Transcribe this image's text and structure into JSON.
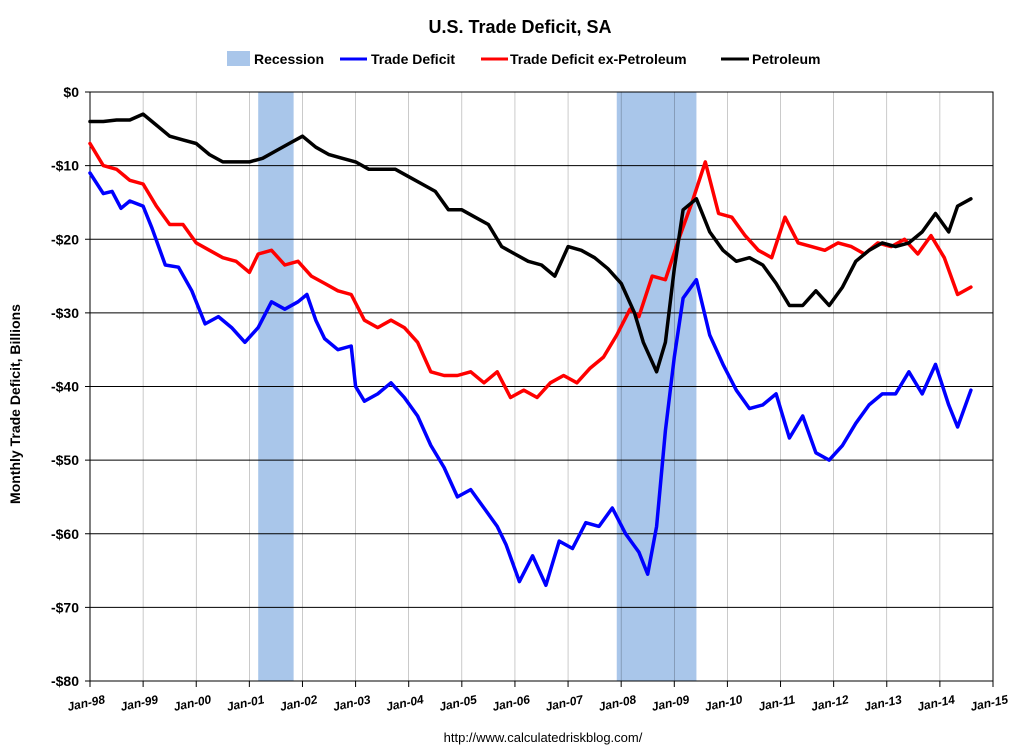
{
  "chart_data": {
    "type": "line",
    "title": "U.S. Trade Deficit, SA",
    "xlabel": "",
    "ylabel": "Monthly Trade Deficit, Billions",
    "footer": "http://www.calculatedriskblog.com/",
    "ylim": [
      -80,
      0
    ],
    "yticks": [
      0,
      -10,
      -20,
      -30,
      -40,
      -50,
      -60,
      -70,
      -80
    ],
    "ytick_labels": [
      "$0",
      "-$10",
      "-$20",
      "-$30",
      "-$40",
      "-$50",
      "-$60",
      "-$70",
      "-$80"
    ],
    "xlim": [
      "1998-01",
      "2015-01"
    ],
    "xtick_labels": [
      "Jan-98",
      "Jan-99",
      "Jan-00",
      "Jan-01",
      "Jan-02",
      "Jan-03",
      "Jan-04",
      "Jan-05",
      "Jan-06",
      "Jan-07",
      "Jan-08",
      "Jan-09",
      "Jan-10",
      "Jan-11",
      "Jan-12",
      "Jan-13",
      "Jan-14",
      "Jan-15"
    ],
    "grid": true,
    "legend_position": "top-center",
    "legend": [
      "Recession",
      "Trade Deficit",
      "Trade Deficit ex-Petroleum",
      "Petroleum"
    ],
    "recessions": [
      {
        "start": "2001-03",
        "end": "2001-11"
      },
      {
        "start": "2007-12",
        "end": "2009-06"
      }
    ],
    "recession_color": "#a9c6ea",
    "series": [
      {
        "name": "Trade Deficit",
        "color": "#0000ff",
        "points": [
          [
            "1998-01",
            -11
          ],
          [
            "1998-04",
            -13.8
          ],
          [
            "1998-06",
            -13.5
          ],
          [
            "1998-08",
            -15.8
          ],
          [
            "1998-10",
            -14.8
          ],
          [
            "1999-01",
            -15.5
          ],
          [
            "1999-03",
            -18.5
          ],
          [
            "1999-06",
            -23.5
          ],
          [
            "1999-09",
            -23.8
          ],
          [
            "1999-12",
            -27
          ],
          [
            "2000-03",
            -31.5
          ],
          [
            "2000-06",
            -30.5
          ],
          [
            "2000-09",
            -32
          ],
          [
            "2000-12",
            -34
          ],
          [
            "2001-03",
            -32
          ],
          [
            "2001-06",
            -28.5
          ],
          [
            "2001-09",
            -29.5
          ],
          [
            "2001-12",
            -28.5
          ],
          [
            "2002-02",
            -27.5
          ],
          [
            "2002-04",
            -31
          ],
          [
            "2002-06",
            -33.5
          ],
          [
            "2002-09",
            -35
          ],
          [
            "2002-12",
            -34.5
          ],
          [
            "2003-01",
            -40
          ],
          [
            "2003-03",
            -42
          ],
          [
            "2003-06",
            -41
          ],
          [
            "2003-09",
            -39.5
          ],
          [
            "2003-12",
            -41.5
          ],
          [
            "2004-03",
            -44
          ],
          [
            "2004-06",
            -48
          ],
          [
            "2004-09",
            -51
          ],
          [
            "2004-12",
            -55
          ],
          [
            "2005-03",
            -54
          ],
          [
            "2005-06",
            -56.5
          ],
          [
            "2005-09",
            -59
          ],
          [
            "2005-11",
            -61.5
          ],
          [
            "2006-02",
            -66.5
          ],
          [
            "2006-05",
            -63
          ],
          [
            "2006-08",
            -67
          ],
          [
            "2006-11",
            -61
          ],
          [
            "2007-02",
            -62
          ],
          [
            "2007-05",
            -58.5
          ],
          [
            "2007-08",
            -59
          ],
          [
            "2007-11",
            -56.5
          ],
          [
            "2008-02",
            -60
          ],
          [
            "2008-05",
            -62.5
          ],
          [
            "2008-07",
            -65.5
          ],
          [
            "2008-09",
            -59
          ],
          [
            "2008-11",
            -46
          ],
          [
            "2009-01",
            -36
          ],
          [
            "2009-03",
            -28
          ],
          [
            "2009-06",
            -25.5
          ],
          [
            "2009-09",
            -33
          ],
          [
            "2009-12",
            -37
          ],
          [
            "2010-03",
            -40.5
          ],
          [
            "2010-06",
            -43
          ],
          [
            "2010-09",
            -42.5
          ],
          [
            "2010-12",
            -41
          ],
          [
            "2011-03",
            -47
          ],
          [
            "2011-06",
            -44
          ],
          [
            "2011-09",
            -49
          ],
          [
            "2011-12",
            -50
          ],
          [
            "2012-03",
            -48
          ],
          [
            "2012-06",
            -45
          ],
          [
            "2012-09",
            -42.5
          ],
          [
            "2012-12",
            -41
          ],
          [
            "2013-03",
            -41
          ],
          [
            "2013-06",
            -38
          ],
          [
            "2013-09",
            -41
          ],
          [
            "2013-12",
            -37
          ],
          [
            "2014-03",
            -42.5
          ],
          [
            "2014-05",
            -45.5
          ],
          [
            "2014-08",
            -40.5
          ]
        ]
      },
      {
        "name": "Trade Deficit ex-Petroleum",
        "color": "#ff0000",
        "points": [
          [
            "1998-01",
            -7
          ],
          [
            "1998-04",
            -10
          ],
          [
            "1998-07",
            -10.5
          ],
          [
            "1998-10",
            -12
          ],
          [
            "1999-01",
            -12.5
          ],
          [
            "1999-04",
            -15.5
          ],
          [
            "1999-07",
            -18
          ],
          [
            "1999-10",
            -18
          ],
          [
            "2000-01",
            -20.5
          ],
          [
            "2000-04",
            -21.5
          ],
          [
            "2000-07",
            -22.5
          ],
          [
            "2000-10",
            -23
          ],
          [
            "2001-01",
            -24.5
          ],
          [
            "2001-03",
            -22
          ],
          [
            "2001-06",
            -21.5
          ],
          [
            "2001-09",
            -23.5
          ],
          [
            "2001-12",
            -23
          ],
          [
            "2002-03",
            -25
          ],
          [
            "2002-06",
            -26
          ],
          [
            "2002-09",
            -27
          ],
          [
            "2002-12",
            -27.5
          ],
          [
            "2003-03",
            -31
          ],
          [
            "2003-06",
            -32
          ],
          [
            "2003-09",
            -31
          ],
          [
            "2003-12",
            -32
          ],
          [
            "2004-03",
            -34
          ],
          [
            "2004-06",
            -38
          ],
          [
            "2004-09",
            -38.5
          ],
          [
            "2004-12",
            -38.5
          ],
          [
            "2005-03",
            -38
          ],
          [
            "2005-06",
            -39.5
          ],
          [
            "2005-09",
            -38
          ],
          [
            "2005-12",
            -41.5
          ],
          [
            "2006-03",
            -40.5
          ],
          [
            "2006-06",
            -41.5
          ],
          [
            "2006-09",
            -39.5
          ],
          [
            "2006-12",
            -38.5
          ],
          [
            "2007-03",
            -39.5
          ],
          [
            "2007-06",
            -37.5
          ],
          [
            "2007-09",
            -36
          ],
          [
            "2007-12",
            -33
          ],
          [
            "2008-03",
            -29.5
          ],
          [
            "2008-05",
            -30.5
          ],
          [
            "2008-08",
            -25
          ],
          [
            "2008-11",
            -25.5
          ],
          [
            "2009-02",
            -20
          ],
          [
            "2009-05",
            -15
          ],
          [
            "2009-08",
            -9.5
          ],
          [
            "2009-11",
            -16.5
          ],
          [
            "2010-02",
            -17
          ],
          [
            "2010-05",
            -19.5
          ],
          [
            "2010-08",
            -21.5
          ],
          [
            "2010-11",
            -22.5
          ],
          [
            "2011-02",
            -17
          ],
          [
            "2011-05",
            -20.5
          ],
          [
            "2011-08",
            -21
          ],
          [
            "2011-11",
            -21.5
          ],
          [
            "2012-02",
            -20.5
          ],
          [
            "2012-05",
            -21
          ],
          [
            "2012-08",
            -22
          ],
          [
            "2012-11",
            -20.5
          ],
          [
            "2013-02",
            -21
          ],
          [
            "2013-05",
            -20
          ],
          [
            "2013-08",
            -22
          ],
          [
            "2013-11",
            -19.5
          ],
          [
            "2014-02",
            -22.5
          ],
          [
            "2014-05",
            -27.5
          ],
          [
            "2014-08",
            -26.5
          ]
        ]
      },
      {
        "name": "Petroleum",
        "color": "#000000",
        "points": [
          [
            "1998-01",
            -4
          ],
          [
            "1998-04",
            -4
          ],
          [
            "1998-07",
            -3.8
          ],
          [
            "1998-10",
            -3.8
          ],
          [
            "1999-01",
            -3
          ],
          [
            "1999-04",
            -4.5
          ],
          [
            "1999-07",
            -6
          ],
          [
            "1999-10",
            -6.5
          ],
          [
            "2000-01",
            -7
          ],
          [
            "2000-04",
            -8.5
          ],
          [
            "2000-07",
            -9.5
          ],
          [
            "2000-10",
            -9.5
          ],
          [
            "2001-01",
            -9.5
          ],
          [
            "2001-04",
            -9
          ],
          [
            "2001-07",
            -8
          ],
          [
            "2001-10",
            -7
          ],
          [
            "2002-01",
            -6
          ],
          [
            "2002-04",
            -7.5
          ],
          [
            "2002-07",
            -8.5
          ],
          [
            "2002-10",
            -9
          ],
          [
            "2003-01",
            -9.5
          ],
          [
            "2003-04",
            -10.5
          ],
          [
            "2003-07",
            -10.5
          ],
          [
            "2003-10",
            -10.5
          ],
          [
            "2004-01",
            -11.5
          ],
          [
            "2004-04",
            -12.5
          ],
          [
            "2004-07",
            -13.5
          ],
          [
            "2004-10",
            -16
          ],
          [
            "2005-01",
            -16
          ],
          [
            "2005-04",
            -17
          ],
          [
            "2005-07",
            -18
          ],
          [
            "2005-10",
            -21
          ],
          [
            "2006-01",
            -22
          ],
          [
            "2006-04",
            -23
          ],
          [
            "2006-07",
            -23.5
          ],
          [
            "2006-10",
            -25
          ],
          [
            "2007-01",
            -21
          ],
          [
            "2007-04",
            -21.5
          ],
          [
            "2007-07",
            -22.5
          ],
          [
            "2007-10",
            -24
          ],
          [
            "2008-01",
            -26
          ],
          [
            "2008-04",
            -30
          ],
          [
            "2008-06",
            -34
          ],
          [
            "2008-09",
            -38
          ],
          [
            "2008-11",
            -34
          ],
          [
            "2009-01",
            -24
          ],
          [
            "2009-03",
            -16
          ],
          [
            "2009-06",
            -14.5
          ],
          [
            "2009-09",
            -19
          ],
          [
            "2009-12",
            -21.5
          ],
          [
            "2010-03",
            -23
          ],
          [
            "2010-06",
            -22.5
          ],
          [
            "2010-09",
            -23.5
          ],
          [
            "2010-12",
            -26
          ],
          [
            "2011-03",
            -29
          ],
          [
            "2011-06",
            -29
          ],
          [
            "2011-09",
            -27
          ],
          [
            "2011-12",
            -29
          ],
          [
            "2012-03",
            -26.5
          ],
          [
            "2012-06",
            -23
          ],
          [
            "2012-09",
            -21.5
          ],
          [
            "2012-12",
            -20.5
          ],
          [
            "2013-03",
            -21
          ],
          [
            "2013-06",
            -20.5
          ],
          [
            "2013-09",
            -19
          ],
          [
            "2013-12",
            -16.5
          ],
          [
            "2014-03",
            -19
          ],
          [
            "2014-05",
            -15.5
          ],
          [
            "2014-08",
            -14.5
          ]
        ]
      }
    ]
  }
}
